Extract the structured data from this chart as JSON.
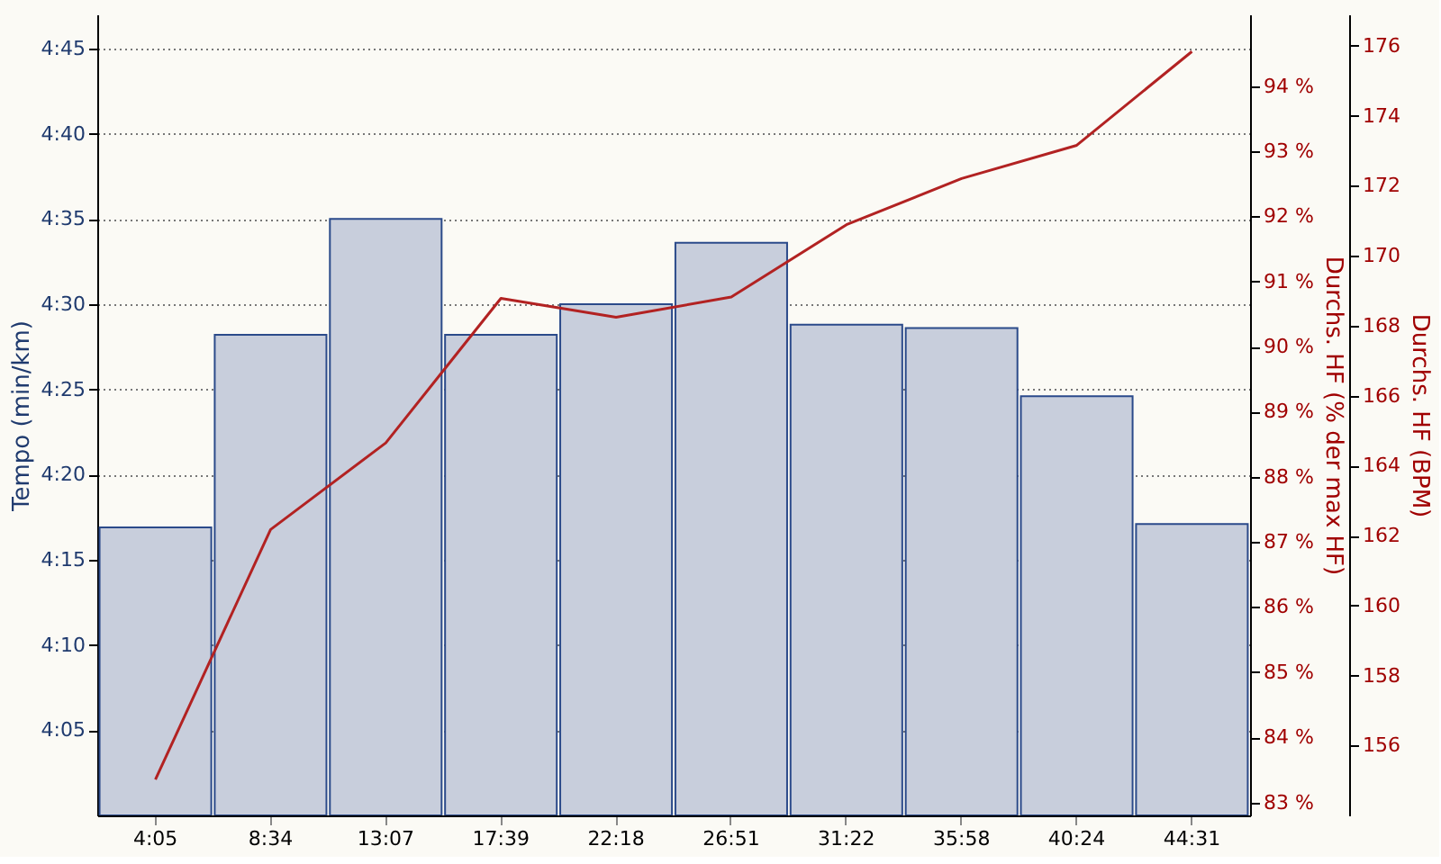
{
  "chart_data": {
    "type": "bar",
    "ylabel": "Tempo (min/km)",
    "y2label": "Durchs. HF (% der max HF)",
    "y3label": "Durchs. HF (BPM)",
    "categories": [
      "4:05",
      "8:34",
      "13:07",
      "17:39",
      "22:18",
      "26:51",
      "31:22",
      "35:58",
      "40:24",
      "44:31"
    ],
    "ylim": [
      240,
      287
    ],
    "yticks": [
      {
        "value": 245,
        "label": "4:05"
      },
      {
        "value": 250,
        "label": "4:10"
      },
      {
        "value": 255,
        "label": "4:15"
      },
      {
        "value": 260,
        "label": "4:20"
      },
      {
        "value": 265,
        "label": "4:25"
      },
      {
        "value": 270,
        "label": "4:30"
      },
      {
        "value": 275,
        "label": "4:35"
      },
      {
        "value": 280,
        "label": "4:40"
      },
      {
        "value": 285,
        "label": "4:45"
      }
    ],
    "y2lim": [
      82.8,
      95.1
    ],
    "y2ticks": [
      {
        "value": 83,
        "label": "83 %"
      },
      {
        "value": 84,
        "label": "84 %"
      },
      {
        "value": 85,
        "label": "85 %"
      },
      {
        "value": 86,
        "label": "86 %"
      },
      {
        "value": 87,
        "label": "87 %"
      },
      {
        "value": 88,
        "label": "88 %"
      },
      {
        "value": 89,
        "label": "89 %"
      },
      {
        "value": 90,
        "label": "90 %"
      },
      {
        "value": 91,
        "label": "91 %"
      },
      {
        "value": 92,
        "label": "92 %"
      },
      {
        "value": 93,
        "label": "93 %"
      },
      {
        "value": 94,
        "label": "94 %"
      }
    ],
    "y3lim": [
      154,
      176.9
    ],
    "y3ticks": [
      156,
      158,
      160,
      162,
      164,
      166,
      168,
      170,
      172,
      174,
      176
    ],
    "grid": "y",
    "series": [
      {
        "color": "#c8cedc",
        "values": [
          256.9,
          268.2,
          275.0,
          268.2,
          270.0,
          273.6,
          268.8,
          268.6,
          264.6,
          257.1
        ]
      },
      {
        "type": "line",
        "axis": "y2",
        "color": "#b22222",
        "marker": "none",
        "line_style": "solid",
        "values": [
          83.35,
          87.19,
          88.52,
          90.74,
          90.45,
          90.76,
          91.87,
          92.58,
          93.09,
          94.53
        ]
      }
    ]
  }
}
